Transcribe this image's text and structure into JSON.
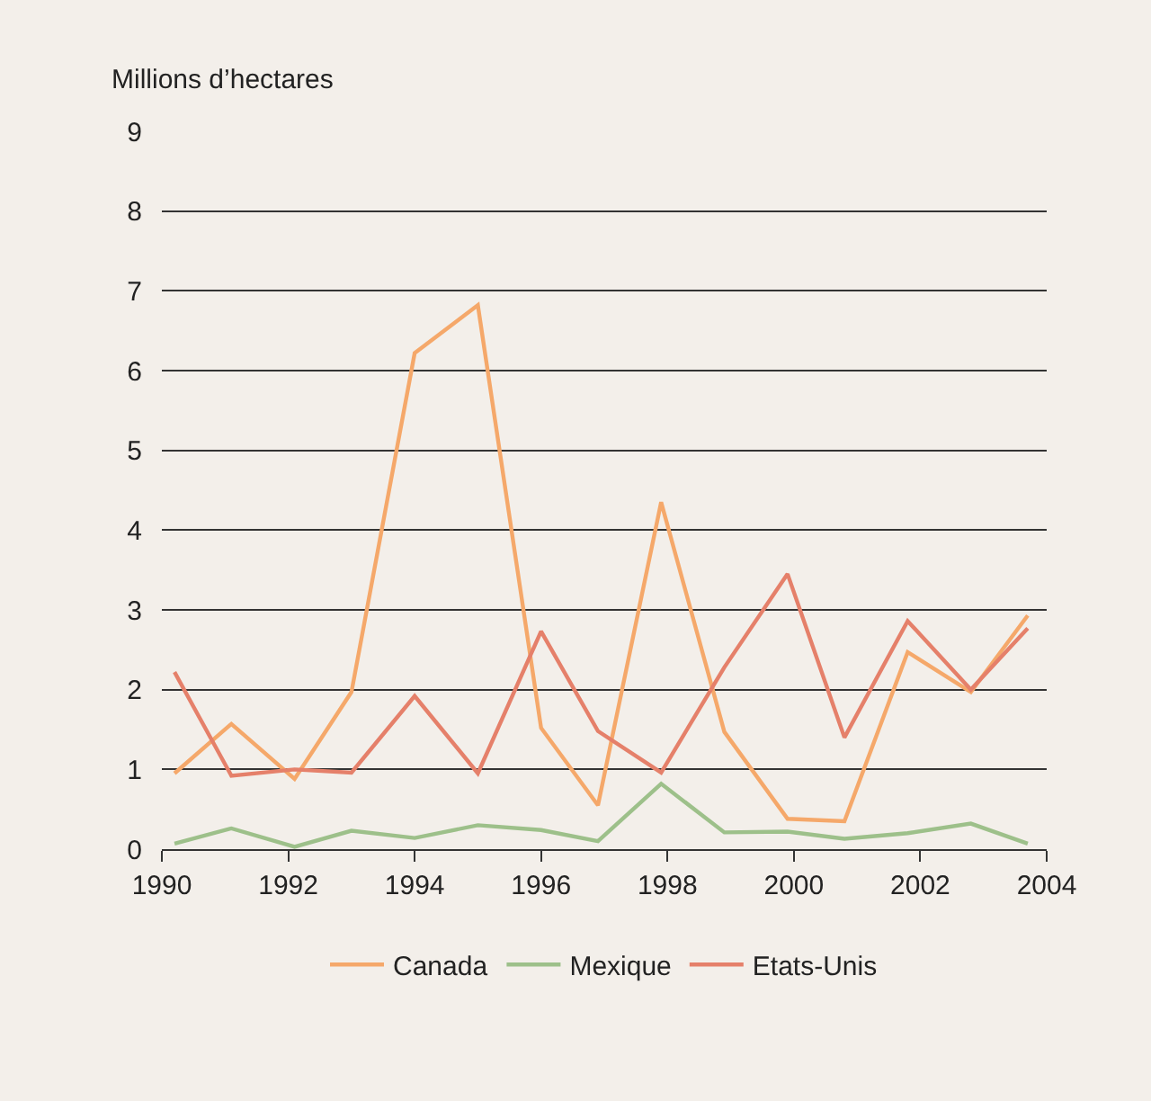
{
  "chart_data": {
    "type": "line",
    "ylabel": "Millions d’hectares",
    "x": [
      1990.2,
      1991.1,
      1992.1,
      1993.0,
      1994.0,
      1995.0,
      1996.0,
      1996.9,
      1997.9,
      1998.9,
      1999.9,
      2000.8,
      2001.8,
      2002.8,
      2003.7
    ],
    "series": [
      {
        "name": "Canada",
        "color": "#f5a86a",
        "values": [
          0.95,
          1.57,
          0.88,
          1.97,
          6.22,
          6.82,
          1.52,
          0.55,
          4.35,
          1.47,
          0.38,
          0.35,
          2.47,
          1.97,
          2.93
        ]
      },
      {
        "name": "Mexique",
        "color": "#9dc08a",
        "values": [
          0.07,
          0.26,
          0.03,
          0.23,
          0.14,
          0.3,
          0.24,
          0.1,
          0.82,
          0.21,
          0.22,
          0.13,
          0.2,
          0.32,
          0.07
        ]
      },
      {
        "name": "Etats-Unis",
        "color": "#e5806a",
        "values": [
          2.22,
          0.92,
          1.0,
          0.96,
          1.92,
          0.95,
          2.73,
          1.48,
          0.96,
          2.28,
          3.45,
          1.4,
          2.86,
          2.0,
          2.77
        ]
      }
    ],
    "xlim": [
      1990,
      2004
    ],
    "xticks": [
      1990,
      1992,
      1994,
      1996,
      1998,
      2000,
      2002,
      2004
    ],
    "ylim": [
      0,
      9
    ],
    "yticks": [
      0,
      1,
      2,
      3,
      4,
      5,
      6,
      7,
      8,
      9
    ],
    "grid": "y",
    "legend": "bottom",
    "marker": "none",
    "line_style": "solid"
  }
}
